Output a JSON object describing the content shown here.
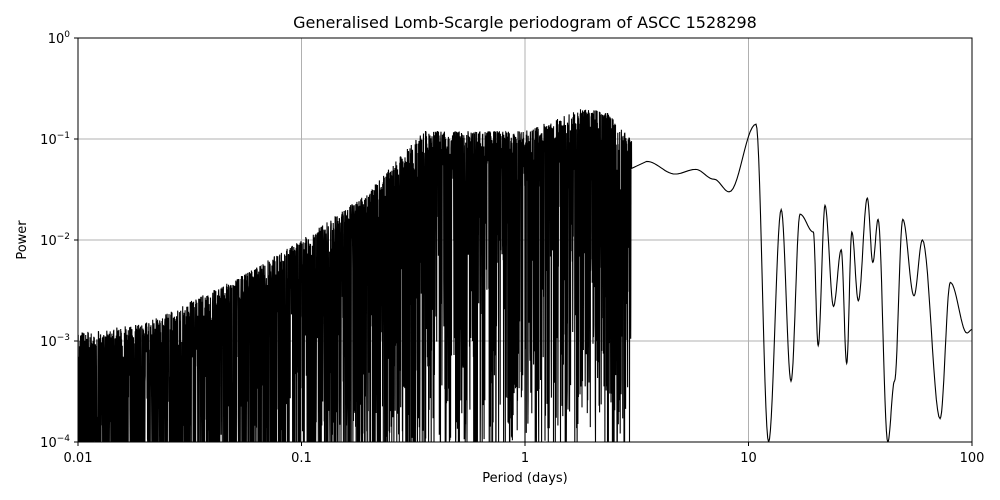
{
  "chart_data": {
    "type": "line",
    "title": "Generalised Lomb-Scargle periodogram of ASCC 1528298",
    "xlabel": "Period (days)",
    "ylabel": "Power",
    "x_scale": "log",
    "y_scale": "log",
    "xlim": [
      0.01,
      100
    ],
    "ylim": [
      0.0001,
      1
    ],
    "grid": true,
    "line_color": "#000000",
    "grid_color": "#b0b0b0",
    "x_ticks": [
      {
        "value": 0.01,
        "label": "0.01"
      },
      {
        "value": 0.1,
        "label": "0.1"
      },
      {
        "value": 1,
        "label": "1"
      },
      {
        "value": 10,
        "label": "10"
      },
      {
        "value": 100,
        "label": "100"
      }
    ],
    "y_ticks": [
      {
        "value": 0.0001,
        "base": "10",
        "exp": "−4"
      },
      {
        "value": 0.001,
        "base": "10",
        "exp": "−3"
      },
      {
        "value": 0.01,
        "base": "10",
        "exp": "−2"
      },
      {
        "value": 0.1,
        "base": "10",
        "exp": "−1"
      },
      {
        "value": 1,
        "base": "10",
        "exp": "0"
      }
    ],
    "envelope": {
      "description_points_period": [
        0.01,
        0.02,
        0.05,
        0.1,
        0.2,
        0.35,
        0.5,
        0.7,
        1.0,
        1.8,
        2.3,
        3.0
      ],
      "peak_power": [
        0.0012,
        0.0015,
        0.004,
        0.01,
        0.03,
        0.12,
        0.12,
        0.12,
        0.12,
        0.2,
        0.19,
        0.1
      ]
    },
    "series": [
      {
        "values_description": "dense oscillating periodogram",
        "long_period_peaks": [
          {
            "period": 3.5,
            "power": 0.06
          },
          {
            "period": 4.7,
            "power": 0.045
          },
          {
            "period": 5.8,
            "power": 0.05
          },
          {
            "period": 7.0,
            "power": 0.04
          },
          {
            "period": 8.2,
            "power": 0.03
          },
          {
            "period": 10.8,
            "power": 0.14
          },
          {
            "period": 14.0,
            "power": 0.02
          },
          {
            "period": 17.0,
            "power": 0.018
          },
          {
            "period": 19.5,
            "power": 0.012
          },
          {
            "period": 22.0,
            "power": 0.022
          },
          {
            "period": 26.0,
            "power": 0.008
          },
          {
            "period": 29.0,
            "power": 0.012
          },
          {
            "period": 34.0,
            "power": 0.026
          },
          {
            "period": 38.0,
            "power": 0.016
          },
          {
            "period": 49.0,
            "power": 0.016
          },
          {
            "period": 60.0,
            "power": 0.01
          },
          {
            "period": 80.0,
            "power": 0.0038
          },
          {
            "period": 100.0,
            "power": 0.0013
          }
        ],
        "long_period_troughs": [
          {
            "period": 12.3,
            "power": 0.0001
          },
          {
            "period": 15.5,
            "power": 0.0004
          },
          {
            "period": 20.5,
            "power": 0.0009
          },
          {
            "period": 24.0,
            "power": 0.0022
          },
          {
            "period": 27.5,
            "power": 0.0006
          },
          {
            "period": 31.0,
            "power": 0.0025
          },
          {
            "period": 36.0,
            "power": 0.006
          },
          {
            "period": 42.0,
            "power": 0.0001
          },
          {
            "period": 45.0,
            "power": 0.0004
          },
          {
            "period": 55.0,
            "power": 0.0028
          },
          {
            "period": 72.0,
            "power": 0.00017
          },
          {
            "period": 95.0,
            "power": 0.0012
          }
        ]
      }
    ]
  }
}
